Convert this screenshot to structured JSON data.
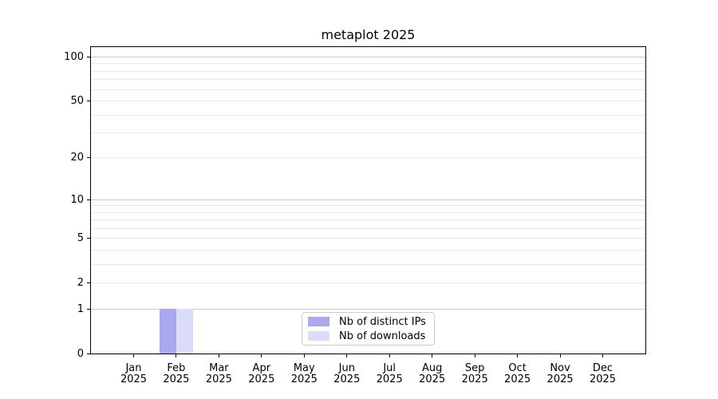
{
  "title": "metaplot 2025",
  "colors": {
    "background": "#ffffff",
    "bar_distinct_ips": "#a8a8f1",
    "bar_downloads": "#dcdcf8",
    "grid_major": "#c9c9c9",
    "grid_minor": "#e9e9e9",
    "spine": "#000000",
    "text": "#000000",
    "legend_border": "#cccccc"
  },
  "legend": {
    "items": [
      {
        "label": "Nb of distinct IPs",
        "color": "#a8a8f1"
      },
      {
        "label": "Nb of downloads",
        "color": "#dcdcf8"
      }
    ]
  },
  "chart_data": {
    "type": "bar",
    "title": "metaplot 2025",
    "categories": [
      "Jan",
      "Feb",
      "Mar",
      "Apr",
      "May",
      "Jun",
      "Jul",
      "Aug",
      "Sep",
      "Oct",
      "Nov",
      "Dec"
    ],
    "year_label": "2025",
    "series": [
      {
        "name": "Nb of distinct IPs",
        "color": "#a8a8f1",
        "values": [
          0,
          1,
          0,
          0,
          0,
          0,
          0,
          0,
          0,
          0,
          0,
          0
        ]
      },
      {
        "name": "Nb of downloads",
        "color": "#dcdcf8",
        "values": [
          0,
          1,
          0,
          0,
          0,
          0,
          0,
          0,
          0,
          0,
          0,
          0
        ]
      }
    ],
    "xlabel": "",
    "ylabel": "",
    "yscale": "log1p",
    "ylim": [
      0,
      117
    ],
    "ytick_values": [
      0,
      1,
      2,
      5,
      10,
      20,
      50,
      100
    ],
    "ytick_labels": [
      "0",
      "1",
      "2",
      "5",
      "10",
      "20",
      "50",
      "100"
    ],
    "grid_strong_values": [
      1,
      10,
      100
    ],
    "grid_light_values": [
      2,
      5,
      20,
      50,
      3,
      4,
      6,
      7,
      8,
      9,
      30,
      40,
      60,
      70,
      80,
      90
    ],
    "grid": true,
    "legend_position": "lower center inside axes"
  }
}
